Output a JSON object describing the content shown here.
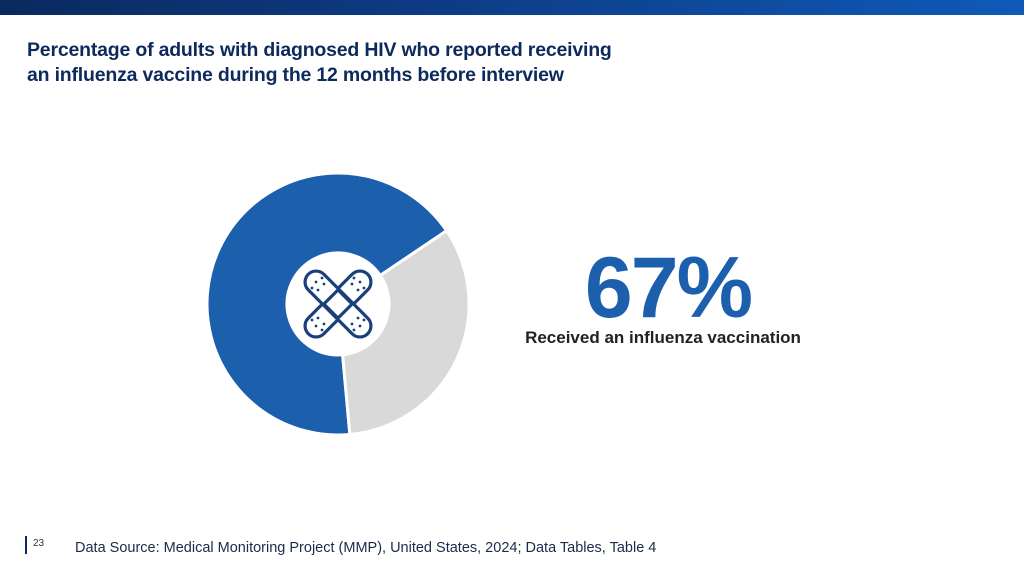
{
  "slide": {
    "title_line1": "Percentage of adults with diagnosed HIV who reported receiving",
    "title_line2": "an influenza vaccine during the 12 months before interview",
    "page_number": "23",
    "source": "Data Source: Medical Monitoring Project (MMP), United States, 2024; Data Tables, Table 4",
    "center_icon": "bandage-icon"
  },
  "chart_data": {
    "type": "pie",
    "values": [
      67,
      33
    ],
    "colors": [
      "#1b5fad",
      "#d9d9d9"
    ],
    "value_label": "67%",
    "caption": "Received an influenza vaccination"
  },
  "colors": {
    "accent": "#1b5fad",
    "title": "#0d2a5c",
    "remainder": "#d9d9d9",
    "icon": "#1b3f7a"
  }
}
